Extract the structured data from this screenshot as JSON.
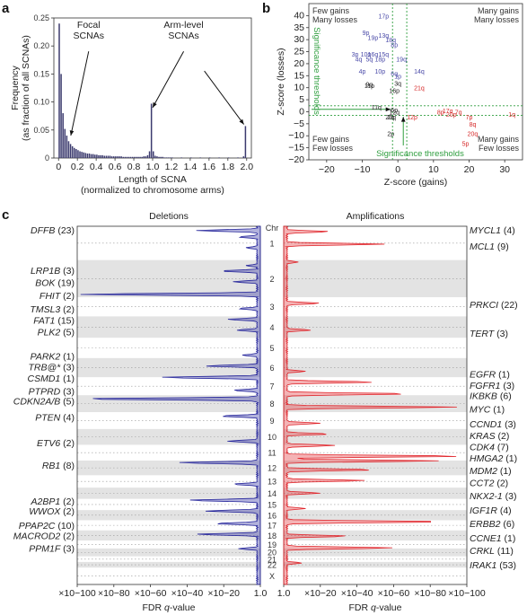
{
  "panel_labels": {
    "a": "a",
    "b": "b",
    "c": "c"
  },
  "chart_data": [
    {
      "id": "a",
      "type": "bar",
      "ylabel_lines": [
        "Frequency",
        "(as fraction of all SCNAs)"
      ],
      "xlabel_lines": [
        "Length of SCNA",
        "(normalized to chromosome arms)"
      ],
      "xlim": [
        -0.05,
        2.05
      ],
      "ylim": [
        0,
        0.25
      ],
      "xticks": [
        0,
        0.2,
        0.4,
        0.6,
        0.8,
        1.0,
        1.2,
        1.4,
        1.6,
        1.8,
        2.0
      ],
      "xtick_labels": [
        "0",
        "0.2",
        "0.4",
        "0.6",
        "0.8",
        "1.0",
        "1.2",
        "1.4",
        "1.6",
        "1.8",
        "2.0"
      ],
      "yticks": [
        0,
        0.05,
        0.1,
        0.15,
        0.2,
        0.25
      ],
      "ytick_labels": [
        "0",
        "0.05",
        "0.10",
        "0.15",
        "0.20",
        "0.25"
      ],
      "bin_width": 0.02,
      "bins": [
        {
          "x": 0.0,
          "y": 0.24
        },
        {
          "x": 0.02,
          "y": 0.15
        },
        {
          "x": 0.04,
          "y": 0.08
        },
        {
          "x": 0.06,
          "y": 0.052
        },
        {
          "x": 0.08,
          "y": 0.04
        },
        {
          "x": 0.1,
          "y": 0.03
        },
        {
          "x": 0.12,
          "y": 0.025
        },
        {
          "x": 0.14,
          "y": 0.021
        },
        {
          "x": 0.16,
          "y": 0.018
        },
        {
          "x": 0.18,
          "y": 0.016
        },
        {
          "x": 0.2,
          "y": 0.014
        },
        {
          "x": 0.22,
          "y": 0.012
        },
        {
          "x": 0.24,
          "y": 0.011
        },
        {
          "x": 0.26,
          "y": 0.01
        },
        {
          "x": 0.28,
          "y": 0.009
        },
        {
          "x": 0.3,
          "y": 0.008
        },
        {
          "x": 0.32,
          "y": 0.008
        },
        {
          "x": 0.34,
          "y": 0.007
        },
        {
          "x": 0.36,
          "y": 0.007
        },
        {
          "x": 0.38,
          "y": 0.006
        },
        {
          "x": 0.4,
          "y": 0.006
        },
        {
          "x": 0.42,
          "y": 0.005
        },
        {
          "x": 0.44,
          "y": 0.005
        },
        {
          "x": 0.46,
          "y": 0.005
        },
        {
          "x": 0.48,
          "y": 0.004
        },
        {
          "x": 0.5,
          "y": 0.004
        },
        {
          "x": 0.52,
          "y": 0.004
        },
        {
          "x": 0.54,
          "y": 0.004
        },
        {
          "x": 0.56,
          "y": 0.003
        },
        {
          "x": 0.58,
          "y": 0.003
        },
        {
          "x": 0.6,
          "y": 0.003
        },
        {
          "x": 0.62,
          "y": 0.003
        },
        {
          "x": 0.64,
          "y": 0.003
        },
        {
          "x": 0.66,
          "y": 0.003
        },
        {
          "x": 0.68,
          "y": 0.002
        },
        {
          "x": 0.7,
          "y": 0.002
        },
        {
          "x": 0.72,
          "y": 0.002
        },
        {
          "x": 0.74,
          "y": 0.002
        },
        {
          "x": 0.76,
          "y": 0.002
        },
        {
          "x": 0.78,
          "y": 0.002
        },
        {
          "x": 0.8,
          "y": 0.002
        },
        {
          "x": 0.82,
          "y": 0.002
        },
        {
          "x": 0.84,
          "y": 0.002
        },
        {
          "x": 0.86,
          "y": 0.002
        },
        {
          "x": 0.88,
          "y": 0.002
        },
        {
          "x": 0.9,
          "y": 0.003
        },
        {
          "x": 0.92,
          "y": 0.003
        },
        {
          "x": 0.94,
          "y": 0.005
        },
        {
          "x": 0.96,
          "y": 0.012
        },
        {
          "x": 0.98,
          "y": 0.097
        },
        {
          "x": 1.0,
          "y": 0.012
        },
        {
          "x": 1.02,
          "y": 0.004
        },
        {
          "x": 1.04,
          "y": 0.003
        },
        {
          "x": 1.06,
          "y": 0.002
        },
        {
          "x": 1.08,
          "y": 0.002
        },
        {
          "x": 1.1,
          "y": 0.002
        },
        {
          "x": 1.12,
          "y": 0.001
        },
        {
          "x": 1.14,
          "y": 0.001
        },
        {
          "x": 1.16,
          "y": 0.001
        },
        {
          "x": 1.18,
          "y": 0.001
        },
        {
          "x": 1.2,
          "y": 0.001
        },
        {
          "x": 1.3,
          "y": 0.001
        },
        {
          "x": 1.4,
          "y": 0.001
        },
        {
          "x": 1.5,
          "y": 0.001
        },
        {
          "x": 1.6,
          "y": 0.001
        },
        {
          "x": 1.7,
          "y": 0.001
        },
        {
          "x": 1.8,
          "y": 0.001
        },
        {
          "x": 1.9,
          "y": 0.001
        },
        {
          "x": 1.96,
          "y": 0.003
        },
        {
          "x": 1.98,
          "y": 0.057
        }
      ],
      "annotations": [
        {
          "lines": [
            "Focal",
            "SCNAs"
          ],
          "tx": 0.32,
          "ty": 0.2,
          "ax": 0.13,
          "ay": 0.04
        },
        {
          "lines": [
            "Arm-level",
            "SCNAs"
          ],
          "tx": 1.33,
          "ty": 0.2,
          "ax": 1.0,
          "ay": 0.09
        },
        {
          "lines": [],
          "tx": 1.55,
          "ty": 0.165,
          "ax": 1.97,
          "ay": 0.06
        }
      ],
      "bar_color": "#3b3a6e"
    },
    {
      "id": "b",
      "type": "scatter",
      "xlabel": "Z-score (gains)",
      "ylabel": "Z-score (losses)",
      "xlim": [
        -25,
        35
      ],
      "ylim": [
        -20,
        45
      ],
      "xticks": [
        -20,
        -10,
        0,
        10,
        20,
        30
      ],
      "yticks": [
        -20,
        -15,
        -10,
        -5,
        0,
        5,
        10,
        15,
        20,
        25,
        30,
        35,
        40
      ],
      "corner_labels": {
        "tl": [
          "Few gains",
          "Many losses"
        ],
        "tr": [
          "Many gains",
          "Many losses"
        ],
        "bl": [
          "Few gains",
          "Few losses"
        ],
        "br": [
          "Many gains",
          "Few losses"
        ]
      },
      "threshold_label": "Significance thresholds",
      "threshold_x": [
        -1.5,
        2.5
      ],
      "threshold_y": [
        2.5,
        -1.5
      ],
      "threshold_color": "#2e9e3e",
      "colors": {
        "loss": "#4a4aa8",
        "gain": "#d62a2a",
        "neutral": "#222222"
      },
      "points": [
        {
          "label": "17p",
          "x": -4,
          "y": 40,
          "c": "loss"
        },
        {
          "label": "9p",
          "x": -9,
          "y": 33,
          "c": "loss"
        },
        {
          "label": "19p",
          "x": -7,
          "y": 31,
          "c": "loss"
        },
        {
          "label": "13q",
          "x": -4,
          "y": 32,
          "c": "loss"
        },
        {
          "label": "18q",
          "x": -2,
          "y": 30,
          "c": "loss"
        },
        {
          "label": "8p",
          "x": -1,
          "y": 28,
          "c": "loss"
        },
        {
          "label": "3p",
          "x": -12,
          "y": 24,
          "c": "loss"
        },
        {
          "label": "10q",
          "x": -9,
          "y": 24,
          "c": "loss"
        },
        {
          "label": "16q",
          "x": -7,
          "y": 24,
          "c": "loss"
        },
        {
          "label": "15q",
          "x": -4,
          "y": 24,
          "c": "loss"
        },
        {
          "label": "19q",
          "x": 1,
          "y": 22,
          "c": "loss"
        },
        {
          "label": "4q",
          "x": -11,
          "y": 22,
          "c": "loss"
        },
        {
          "label": "5q",
          "x": -8,
          "y": 22,
          "c": "loss"
        },
        {
          "label": "18p",
          "x": -5,
          "y": 22,
          "c": "loss"
        },
        {
          "label": "4p",
          "x": -10,
          "y": 17,
          "c": "loss"
        },
        {
          "label": "10p",
          "x": -5,
          "y": 17,
          "c": "loss"
        },
        {
          "label": "14q",
          "x": 6,
          "y": 17,
          "c": "loss"
        },
        {
          "label": "1p",
          "x": 0,
          "y": 15,
          "c": "loss"
        },
        {
          "label": "6q",
          "x": -1,
          "y": 16,
          "c": "loss"
        },
        {
          "label": "11p",
          "x": -8,
          "y": 11,
          "c": "neutral"
        },
        {
          "label": "9q",
          "x": -8,
          "y": 11.5,
          "c": "neutral"
        },
        {
          "label": "16p",
          "x": -1,
          "y": 9,
          "c": "neutral"
        },
        {
          "label": "21q",
          "x": 6,
          "y": 10,
          "c": "gain"
        },
        {
          "label": "3q",
          "x": 0,
          "y": 12,
          "c": "neutral"
        },
        {
          "label": "11q",
          "x": -6,
          "y": 2,
          "c": "neutral"
        },
        {
          "label": "6p",
          "x": -1,
          "y": 1,
          "c": "neutral"
        },
        {
          "label": "20q",
          "x": -2,
          "y": -2,
          "c": "neutral"
        },
        {
          "label": "12q",
          "x": -1,
          "y": 0,
          "c": "neutral"
        },
        {
          "label": "2q",
          "x": -2,
          "y": -2,
          "c": "neutral"
        },
        {
          "label": "2p",
          "x": -2,
          "y": -9,
          "c": "neutral"
        },
        {
          "label": "12p",
          "x": 4,
          "y": -2,
          "c": "gain"
        },
        {
          "label": "8p",
          "x": 12,
          "y": 0,
          "c": "gain"
        },
        {
          "label": "17q",
          "x": 14,
          "y": 0.5,
          "c": "gain"
        },
        {
          "label": "20p",
          "x": 15,
          "y": -1,
          "c": "gain"
        },
        {
          "label": "7q",
          "x": 17,
          "y": 0,
          "c": "gain"
        },
        {
          "label": "7p",
          "x": 20,
          "y": -2,
          "c": "gain"
        },
        {
          "label": "8q",
          "x": 21,
          "y": -5,
          "c": "gain"
        },
        {
          "label": "20q",
          "x": 21,
          "y": -9,
          "c": "gain"
        },
        {
          "label": "5p",
          "x": 19,
          "y": -13,
          "c": "gain"
        },
        {
          "label": "1q",
          "x": 32,
          "y": -1,
          "c": "gain"
        }
      ]
    },
    {
      "id": "c",
      "type": "area",
      "left_title": "Deletions",
      "right_title": "Amplifications",
      "chr_header": "Chr",
      "xlabel_prefix": "FDR ",
      "xlabel_var": "q",
      "xlabel_suffix": "-value",
      "left_ticks": [
        "×10−100",
        "×10−80",
        "×10−60",
        "×10−40",
        "×10−20",
        "1.0"
      ],
      "right_ticks": [
        "1.0",
        "×10−20",
        "×10−40",
        "×10−60",
        "×10−80",
        "×10−100"
      ],
      "chromosomes": [
        "1",
        "2",
        "3",
        "4",
        "5",
        "6",
        "7",
        "8",
        "9",
        "10",
        "11",
        "12",
        "13",
        "14",
        "15",
        "16",
        "17",
        "18",
        "19",
        "20",
        "21",
        "22",
        "X"
      ],
      "chr_sizes": [
        30,
        33,
        17,
        19,
        18,
        17,
        16,
        15,
        15,
        14,
        14,
        13,
        11,
        10,
        10,
        9,
        9,
        9,
        7,
        7,
        5,
        5,
        15
      ],
      "del_color": "#23239a",
      "amp_color": "#e0242a",
      "deletion_labels": [
        {
          "gene": "DFFB",
          "count": "(23)",
          "pos": 0.01
        },
        {
          "gene": "LRP1B",
          "count": "(3)",
          "pos": 0.123
        },
        {
          "gene": "BOK",
          "count": "(19)",
          "pos": 0.157
        },
        {
          "gene": "FHIT",
          "count": "(2)",
          "pos": 0.193
        },
        {
          "gene": "TMSL3",
          "count": "(2)",
          "pos": 0.231
        },
        {
          "gene": "FAT1",
          "count": "(15)",
          "pos": 0.262
        },
        {
          "gene": "PLK2",
          "count": "(5)",
          "pos": 0.295
        },
        {
          "gene": "PARK2",
          "count": "(1)",
          "pos": 0.362
        },
        {
          "gene": "TRB@*",
          "count": "(3)",
          "pos": 0.392
        },
        {
          "gene": "CSMD1",
          "count": "(1)",
          "pos": 0.424
        },
        {
          "gene": "PTPRD",
          "count": "(3)",
          "pos": 0.46
        },
        {
          "gene": "CDKN2A/B",
          "count": "(5)",
          "pos": 0.487
        },
        {
          "gene": "PTEN",
          "count": "(4)",
          "pos": 0.532
        },
        {
          "gene": "ETV6",
          "count": "(2)",
          "pos": 0.604
        },
        {
          "gene": "RB1",
          "count": "(8)",
          "pos": 0.667
        },
        {
          "gene": "A2BP1",
          "count": "(2)",
          "pos": 0.767
        },
        {
          "gene": "WWOX",
          "count": "(2)",
          "pos": 0.795
        },
        {
          "gene": "PPAP2C",
          "count": "(10)",
          "pos": 0.834
        },
        {
          "gene": "MACROD2",
          "count": "(2)",
          "pos": 0.863
        },
        {
          "gene": "PPM1F",
          "count": "(3)",
          "pos": 0.899
        }
      ],
      "amplification_labels": [
        {
          "gene": "MYCL1",
          "count": "(4)",
          "pos": 0.01
        },
        {
          "gene": "MCL1",
          "count": "(9)",
          "pos": 0.055
        },
        {
          "gene": "PRKCI",
          "count": "(22)",
          "pos": 0.218
        },
        {
          "gene": "TERT",
          "count": "(3)",
          "pos": 0.298
        },
        {
          "gene": "EGFR",
          "count": "(1)",
          "pos": 0.412
        },
        {
          "gene": "FGFR1",
          "count": "(3)",
          "pos": 0.443
        },
        {
          "gene": "IKBKB",
          "count": "(6)",
          "pos": 0.473
        },
        {
          "gene": "MYC",
          "count": "(1)",
          "pos": 0.51
        },
        {
          "gene": "CCND1",
          "count": "(3)",
          "pos": 0.552
        },
        {
          "gene": "KRAS",
          "count": "(2)",
          "pos": 0.584
        },
        {
          "gene": "CDK4",
          "count": "(7)",
          "pos": 0.615
        },
        {
          "gene": "HMGA2",
          "count": "(1)",
          "pos": 0.647
        },
        {
          "gene": "MDM2",
          "count": "(1)",
          "pos": 0.682
        },
        {
          "gene": "CCT2",
          "count": "(2)",
          "pos": 0.715
        },
        {
          "gene": "NKX2-1",
          "count": "(3)",
          "pos": 0.752
        },
        {
          "gene": "IGF1R",
          "count": "(4)",
          "pos": 0.792
        },
        {
          "gene": "ERBB2",
          "count": "(6)",
          "pos": 0.83
        },
        {
          "gene": "CCNE1",
          "count": "(1)",
          "pos": 0.87
        },
        {
          "gene": "CRKL",
          "count": "(11)",
          "pos": 0.905
        },
        {
          "gene": "IRAK1",
          "count": "(53)",
          "pos": 0.945
        }
      ],
      "del_peaks": [
        {
          "pos": 0.012,
          "v": 0.35
        },
        {
          "pos": 0.03,
          "v": 0.12
        },
        {
          "pos": 0.06,
          "v": 0.08
        },
        {
          "pos": 0.11,
          "v": 0.08
        },
        {
          "pos": 0.125,
          "v": 0.22
        },
        {
          "pos": 0.155,
          "v": 0.15
        },
        {
          "pos": 0.19,
          "v": 1.0
        },
        {
          "pos": 0.23,
          "v": 0.12
        },
        {
          "pos": 0.26,
          "v": 0.18
        },
        {
          "pos": 0.29,
          "v": 0.13
        },
        {
          "pos": 0.36,
          "v": 0.1
        },
        {
          "pos": 0.39,
          "v": 0.3
        },
        {
          "pos": 0.422,
          "v": 0.55
        },
        {
          "pos": 0.458,
          "v": 0.15
        },
        {
          "pos": 0.482,
          "v": 1.0
        },
        {
          "pos": 0.53,
          "v": 0.22
        },
        {
          "pos": 0.6,
          "v": 0.18
        },
        {
          "pos": 0.66,
          "v": 0.45
        },
        {
          "pos": 0.72,
          "v": 0.15
        },
        {
          "pos": 0.765,
          "v": 0.4
        },
        {
          "pos": 0.795,
          "v": 0.3
        },
        {
          "pos": 0.83,
          "v": 0.25
        },
        {
          "pos": 0.86,
          "v": 0.35
        },
        {
          "pos": 0.9,
          "v": 0.12
        }
      ],
      "amp_peaks": [
        {
          "pos": 0.015,
          "v": 0.25
        },
        {
          "pos": 0.05,
          "v": 0.55
        },
        {
          "pos": 0.1,
          "v": 0.08
        },
        {
          "pos": 0.215,
          "v": 0.2
        },
        {
          "pos": 0.29,
          "v": 0.15
        },
        {
          "pos": 0.405,
          "v": 0.12
        },
        {
          "pos": 0.435,
          "v": 0.5
        },
        {
          "pos": 0.468,
          "v": 0.7
        },
        {
          "pos": 0.505,
          "v": 0.95
        },
        {
          "pos": 0.55,
          "v": 0.2
        },
        {
          "pos": 0.58,
          "v": 0.25
        },
        {
          "pos": 0.612,
          "v": 0.28
        },
        {
          "pos": 0.642,
          "v": 1.0
        },
        {
          "pos": 0.655,
          "v": 0.85
        },
        {
          "pos": 0.68,
          "v": 0.5
        },
        {
          "pos": 0.71,
          "v": 0.45
        },
        {
          "pos": 0.745,
          "v": 0.2
        },
        {
          "pos": 0.788,
          "v": 0.12
        },
        {
          "pos": 0.825,
          "v": 0.9
        },
        {
          "pos": 0.865,
          "v": 0.35
        },
        {
          "pos": 0.898,
          "v": 0.6
        },
        {
          "pos": 0.94,
          "v": 0.1
        }
      ]
    }
  ]
}
